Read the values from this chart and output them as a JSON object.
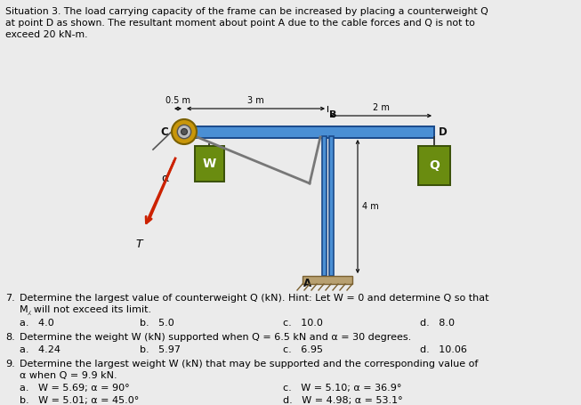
{
  "background_color": "#ebebeb",
  "title_lines": [
    "Situation 3. The load carrying capacity of the frame can be increased by placing a counterweight Q",
    "at point D as shown. The resultant moment about point A due to the cable forces and Q is not to",
    "exceed 20 kN-m."
  ],
  "diagram": {
    "frame_color": "#4a8fd4",
    "frame_outline": "#1a4a8a",
    "weight_color": "#6a8c10",
    "weight_outline": "#3a5008",
    "ground_color": "#b8a070",
    "ground_hatch": "#7a6030",
    "pulley_outer": "#c8960a",
    "pulley_inner": "#888888",
    "cable_color": "#cc2200",
    "dim_color": "#111111",
    "label_color": "#111111"
  },
  "q7": {
    "stem": "Determine the largest value of counterweight Q (kN). Hint: Let W = 0 and determine Q so that",
    "stem2": "M⁁ will not exceed its limit.",
    "a": "4.0",
    "b": "5.0",
    "c": "10.0",
    "d": "8.0"
  },
  "q8": {
    "stem": "Determine the weight W (kN) supported when Q = 6.5 kN and α = 30 degrees.",
    "a": "4.24",
    "b": "5.97",
    "c": "6.95",
    "d": "10.06"
  },
  "q9": {
    "stem": "Determine the largest weight W (kN) that may be supported and the corresponding value of",
    "stem2": "α when Q = 9.9 kN.",
    "a": "W = 5.69; α = 90°",
    "b": "W = 5.01; α = 45.0°",
    "c": "W = 5.10; α = 36.9°",
    "d": "W = 4.98; α = 53.1°"
  }
}
